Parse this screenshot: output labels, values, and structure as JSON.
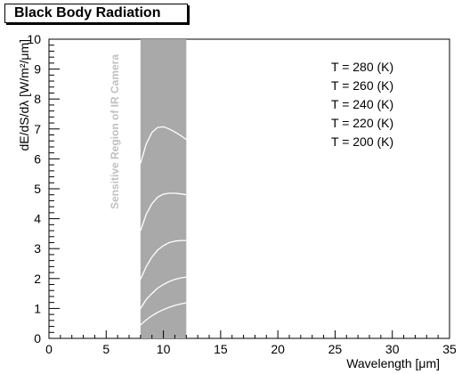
{
  "window": {
    "title": "Black Body Radiation"
  },
  "chart_data": {
    "type": "line",
    "title": "Black Body Radiation",
    "xlabel": "Wavelength [μm]",
    "ylabel": "dE/dS/dλ [W/m²/μm]",
    "xlim": [
      0,
      35
    ],
    "ylim": [
      0,
      10
    ],
    "x_ticks": [
      "0",
      "5",
      "10",
      "15",
      "20",
      "25",
      "30",
      "35"
    ],
    "y_ticks": [
      "0",
      "1",
      "2",
      "3",
      "4",
      "5",
      "6",
      "7",
      "8",
      "9",
      "10"
    ],
    "band": {
      "x_range": [
        8,
        12
      ],
      "label": "Sensitive Region of IR Camera",
      "color": "#a9a9a9"
    },
    "legend": [
      "T = 280 (K)",
      "T = 260 (K)",
      "T = 240 (K)",
      "T = 220 (K)",
      "T = 200 (K)"
    ],
    "curve_color": "#ffffff",
    "series": [
      {
        "name": "T = 280 (K)",
        "x": [
          8,
          8.5,
          9,
          9.5,
          10,
          10.5,
          11,
          11.5,
          12
        ],
        "y": [
          5.85,
          6.5,
          6.88,
          7.05,
          7.07,
          7.0,
          6.9,
          6.78,
          6.65
        ]
      },
      {
        "name": "T = 260 (K)",
        "x": [
          8,
          8.5,
          9,
          9.5,
          10,
          10.5,
          11,
          11.5,
          12
        ],
        "y": [
          3.6,
          4.15,
          4.5,
          4.72,
          4.82,
          4.85,
          4.85,
          4.83,
          4.8
        ]
      },
      {
        "name": "T = 240 (K)",
        "x": [
          8,
          8.5,
          9,
          9.5,
          10,
          10.5,
          11,
          11.5,
          12
        ],
        "y": [
          1.98,
          2.4,
          2.72,
          2.95,
          3.1,
          3.2,
          3.25,
          3.27,
          3.27
        ]
      },
      {
        "name": "T = 220 (K)",
        "x": [
          8,
          8.5,
          9,
          9.5,
          10,
          10.5,
          11,
          11.5,
          12
        ],
        "y": [
          1.0,
          1.3,
          1.5,
          1.68,
          1.8,
          1.9,
          1.97,
          2.02,
          2.05
        ]
      },
      {
        "name": "T = 200 (K)",
        "x": [
          8,
          8.5,
          9,
          9.5,
          10,
          10.5,
          11,
          11.5,
          12
        ],
        "y": [
          0.45,
          0.62,
          0.76,
          0.87,
          0.96,
          1.04,
          1.1,
          1.15,
          1.19
        ]
      }
    ],
    "grid": false,
    "legend_position": "top-right"
  }
}
